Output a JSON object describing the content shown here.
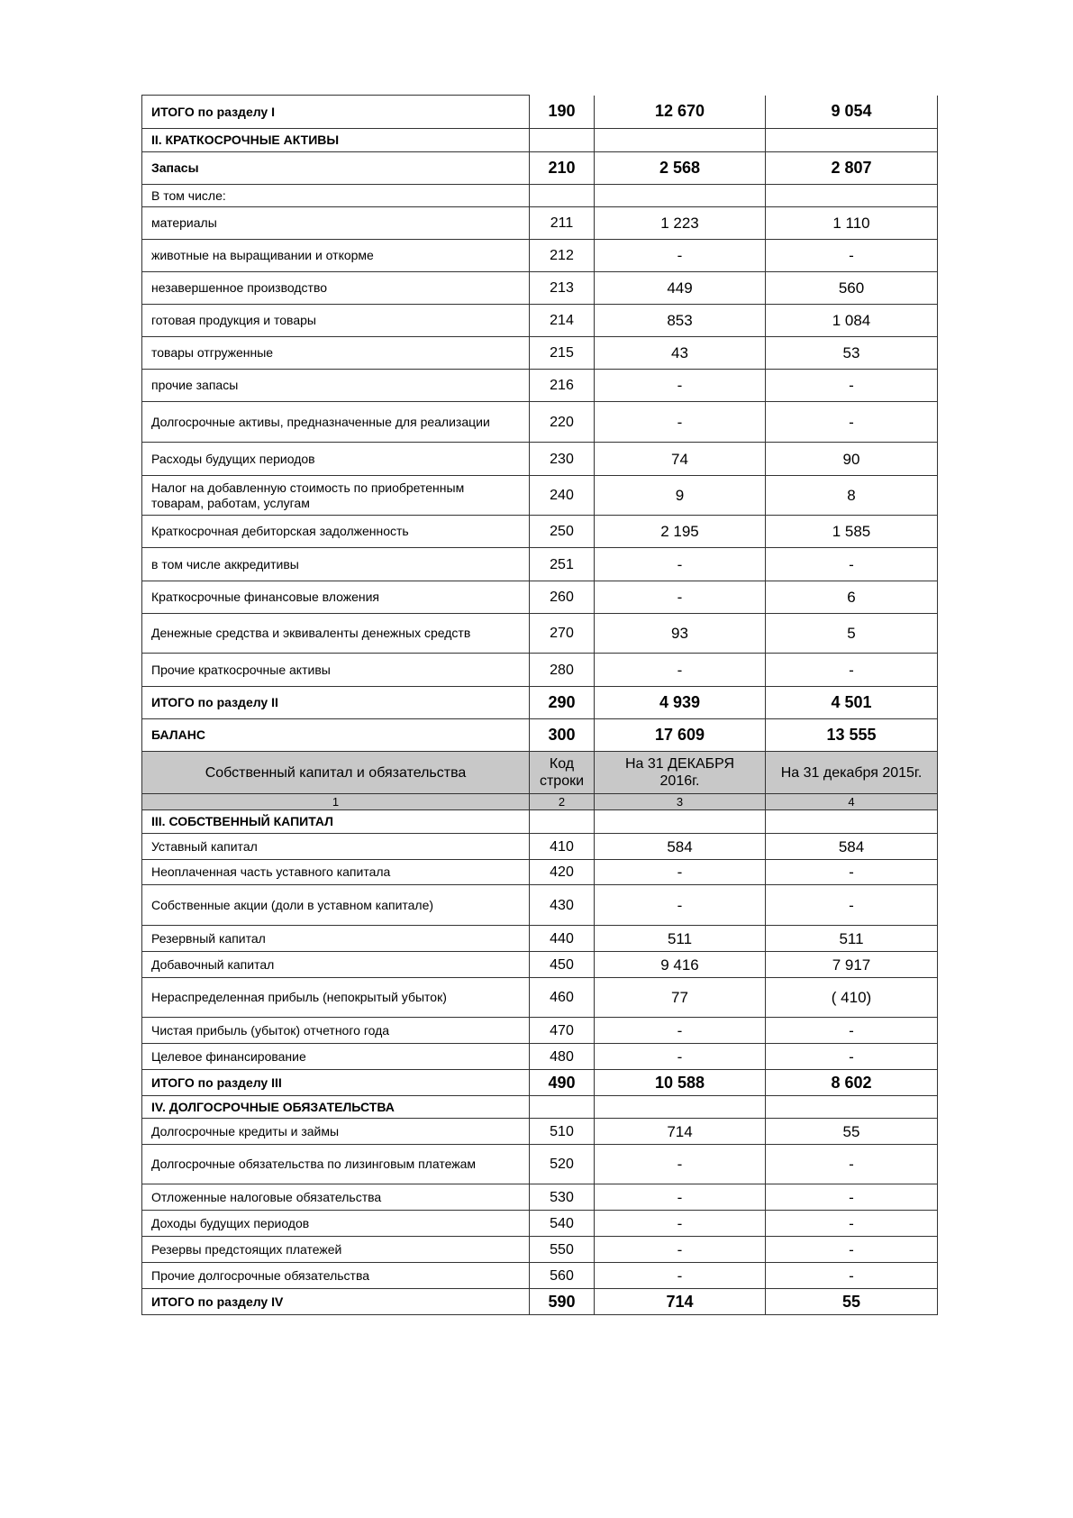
{
  "rows_top": [
    {
      "label": "ИТОГО по разделу I",
      "code": "190",
      "v1": "12 670",
      "v2": "9 054",
      "style": "bold"
    },
    {
      "label": "II. КРАТКОСРОЧНЫЕ АКТИВЫ",
      "code": "",
      "v1": "",
      "v2": "",
      "style": "section"
    },
    {
      "label": "Запасы",
      "code": "210",
      "v1": "2 568",
      "v2": "2 807",
      "style": "bold"
    },
    {
      "label": "В том числе:",
      "code": "",
      "v1": "",
      "v2": "",
      "style": "normal"
    },
    {
      "label": "материалы",
      "code": "211",
      "v1": "1 223",
      "v2": "1 110",
      "style": "normal"
    },
    {
      "label": "животные на выращивании и откорме",
      "code": "212",
      "v1": "-",
      "v2": "-",
      "style": "normal"
    },
    {
      "label": "незавершенное производство",
      "code": "213",
      "v1": "449",
      "v2": "560",
      "style": "normal"
    },
    {
      "label": "готовая продукция и товары",
      "code": "214",
      "v1": "853",
      "v2": "1 084",
      "style": "normal"
    },
    {
      "label": "товары отгруженные",
      "code": "215",
      "v1": "43",
      "v2": "53",
      "style": "normal"
    },
    {
      "label": "прочие запасы",
      "code": "216",
      "v1": "-",
      "v2": "-",
      "style": "normal"
    },
    {
      "label": "Долгосрочные активы, предназначенные для реализации",
      "code": "220",
      "v1": "-",
      "v2": "-",
      "style": "normal"
    },
    {
      "label": "Расходы будущих периодов",
      "code": "230",
      "v1": "74",
      "v2": "90",
      "style": "normal"
    },
    {
      "label": "Налог на добавленную стоимость по приобретенным товарам, работам, услугам",
      "code": "240",
      "v1": "9",
      "v2": "8",
      "style": "normal"
    },
    {
      "label": "Краткосрочная дебиторская задолженность",
      "code": "250",
      "v1": "2 195",
      "v2": "1 585",
      "style": "normal"
    },
    {
      "label": "в том числе аккредитивы",
      "code": "251",
      "v1": "-",
      "v2": "-",
      "style": "normal"
    },
    {
      "label": "Краткосрочные финансовые вложения",
      "code": "260",
      "v1": "-",
      "v2": "6",
      "style": "normal"
    },
    {
      "label": "Денежные средства и эквиваленты денежных средств",
      "code": "270",
      "v1": "93",
      "v2": "5",
      "style": "normal"
    },
    {
      "label": "Прочие краткосрочные активы",
      "code": "280",
      "v1": "-",
      "v2": "-",
      "style": "normal"
    },
    {
      "label": "ИТОГО по разделу II",
      "code": "290",
      "v1": "4 939",
      "v2": "4 501",
      "style": "bold"
    },
    {
      "label": "БАЛАНС",
      "code": "300",
      "v1": "17 609",
      "v2": "13 555",
      "style": "bold"
    }
  ],
  "header": {
    "col1": "Собственный капитал и обязательства",
    "col2": "Код строки",
    "col3": "На 31 ДЕКАБРЯ 2016г.",
    "col4": "На 31 декабря 2015г."
  },
  "header_numbers": {
    "col1": "1",
    "col2": "2",
    "col3": "3",
    "col4": "4"
  },
  "rows_bottom": [
    {
      "label": "III. СОБСТВЕННЫЙ КАПИТАЛ",
      "code": "",
      "v1": "",
      "v2": "",
      "style": "section"
    },
    {
      "label": "Уставный капитал",
      "code": "410",
      "v1": "584",
      "v2": "584",
      "style": "normal"
    },
    {
      "label": "Неоплаченная часть уставного капитала",
      "code": "420",
      "v1": "-",
      "v2": "-",
      "style": "normal"
    },
    {
      "label": "Собственные акции (доли в уставном капитале)",
      "code": "430",
      "v1": "-",
      "v2": "-",
      "style": "normal"
    },
    {
      "label": "Резервный капитал",
      "code": "440",
      "v1": "511",
      "v2": "511",
      "style": "normal"
    },
    {
      "label": "Добавочный капитал",
      "code": "450",
      "v1": "9 416",
      "v2": "7 917",
      "style": "normal"
    },
    {
      "label": "Нераспределенная  прибыль (непокрытый убыток)",
      "code": "460",
      "v1": "77",
      "v2": "( 410)",
      "style": "normal"
    },
    {
      "label": "Чистая прибыль (убыток) отчетного года",
      "code": "470",
      "v1": "-",
      "v2": "-",
      "style": "normal"
    },
    {
      "label": "Целевое финансирование",
      "code": "480",
      "v1": "-",
      "v2": "-",
      "style": "normal"
    },
    {
      "label": "ИТОГО по разделу III",
      "code": "490",
      "v1": "10 588",
      "v2": "8 602",
      "style": "bold"
    },
    {
      "label": "IV. ДОЛГОСРОЧНЫЕ ОБЯЗАТЕЛЬСТВА",
      "code": "",
      "v1": "",
      "v2": "",
      "style": "section"
    },
    {
      "label": "Долгосрочные кредиты и займы",
      "code": "510",
      "v1": "714",
      "v2": "55",
      "style": "normal"
    },
    {
      "label": "Долгосрочные обязательства по лизинговым платежам",
      "code": "520",
      "v1": "-",
      "v2": "-",
      "style": "normal"
    },
    {
      "label": "Отложенные налоговые обязательства",
      "code": "530",
      "v1": "-",
      "v2": "-",
      "style": "normal"
    },
    {
      "label": "Доходы будущих периодов",
      "code": "540",
      "v1": "-",
      "v2": "-",
      "style": "normal"
    },
    {
      "label": "Резервы предстоящих платежей",
      "code": "550",
      "v1": "-",
      "v2": "-",
      "style": "normal"
    },
    {
      "label": "Прочие долгосрочные обязательства",
      "code": "560",
      "v1": "-",
      "v2": "-",
      "style": "normal"
    },
    {
      "label": "ИТОГО по разделу IV",
      "code": "590",
      "v1": "714",
      "v2": "55",
      "style": "bold"
    }
  ]
}
